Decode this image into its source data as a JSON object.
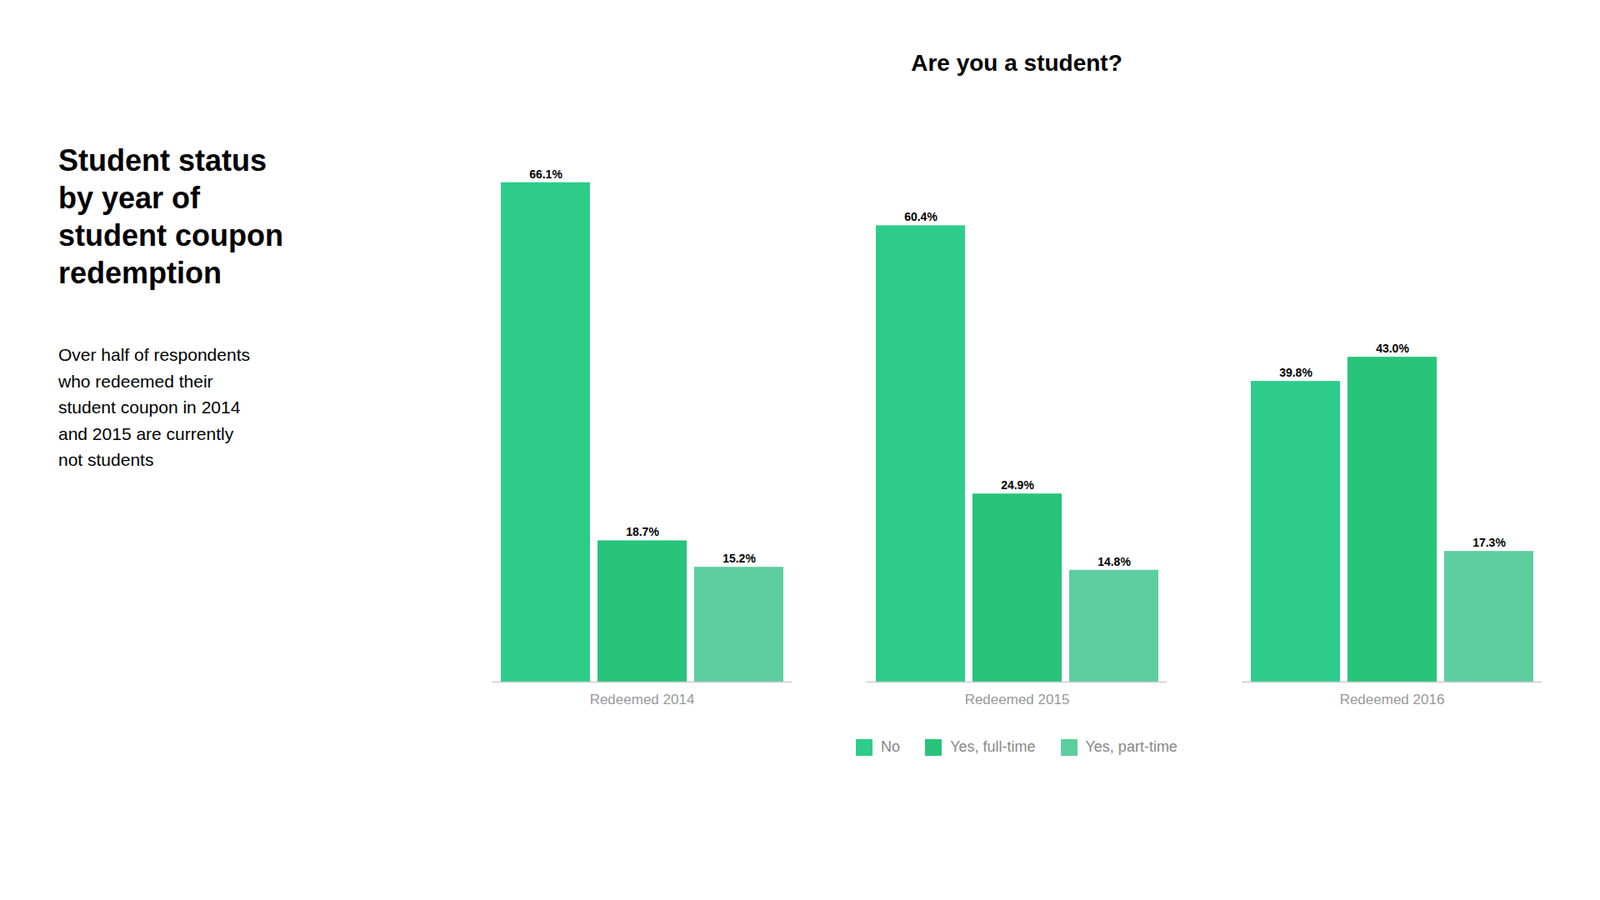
{
  "chart_data": {
    "type": "bar",
    "title": "Are you a student?",
    "subtitle": "Over half of respondents\nwho redeemed their\nstudent coupon in 2014\nand 2015 are currently\nnot students",
    "annotations": [
      "Student status\nby year of\nstudent coupon\nredemption"
    ],
    "categories": [
      "Redeemed 2014",
      "Redeemed 2015",
      "Redeemed 2016"
    ],
    "series": [
      {
        "name": "No",
        "color": "#2ecc8a",
        "values": [
          66.1,
          60.4,
          39.8
        ],
        "value_labels": [
          "66.1%",
          "60.4%",
          "39.8%"
        ]
      },
      {
        "name": "Yes, full-time",
        "color": "#27c47a",
        "values": [
          18.7,
          24.9,
          43.0
        ],
        "value_labels": [
          "18.7%",
          "24.9%",
          "43.0%"
        ]
      },
      {
        "name": "Yes, part-time",
        "color": "#5dcea0",
        "values": [
          15.2,
          14.8,
          17.3
        ],
        "value_labels": [
          "15.2%",
          "14.8%",
          "17.3%"
        ]
      }
    ],
    "ylim": [
      0,
      75
    ],
    "grid": false,
    "legend": "bottom",
    "data_labels": true,
    "tick_labels": "x"
  }
}
